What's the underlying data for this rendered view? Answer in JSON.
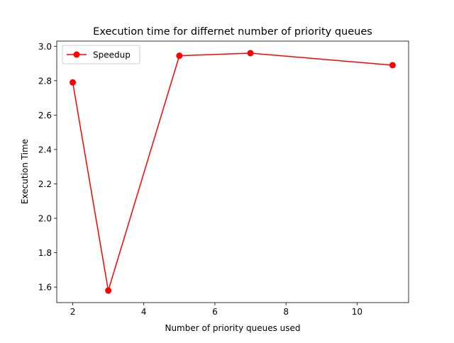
{
  "chart_data": {
    "type": "line",
    "title": "Execution time for differnet number of priority queues",
    "xlabel": "Number of priority queues used",
    "ylabel": "Execution Time",
    "xlim": [
      1.55,
      11.45
    ],
    "ylim": [
      1.51,
      3.03
    ],
    "xticks": [
      2,
      4,
      6,
      8,
      10
    ],
    "xtick_labels": [
      "2",
      "4",
      "6",
      "8",
      "10"
    ],
    "yticks": [
      1.6,
      1.8,
      2.0,
      2.2,
      2.4,
      2.6,
      2.8,
      3.0
    ],
    "ytick_labels": [
      "1.6",
      "1.8",
      "2.0",
      "2.2",
      "2.4",
      "2.6",
      "2.8",
      "3.0"
    ],
    "grid": false,
    "legend_position": "upper-left",
    "series": [
      {
        "name": "Speedup",
        "color": "#ff0000",
        "marker": "circle",
        "x": [
          2,
          3,
          5,
          7,
          11
        ],
        "y": [
          2.79,
          1.58,
          2.945,
          2.96,
          2.89
        ]
      }
    ]
  }
}
